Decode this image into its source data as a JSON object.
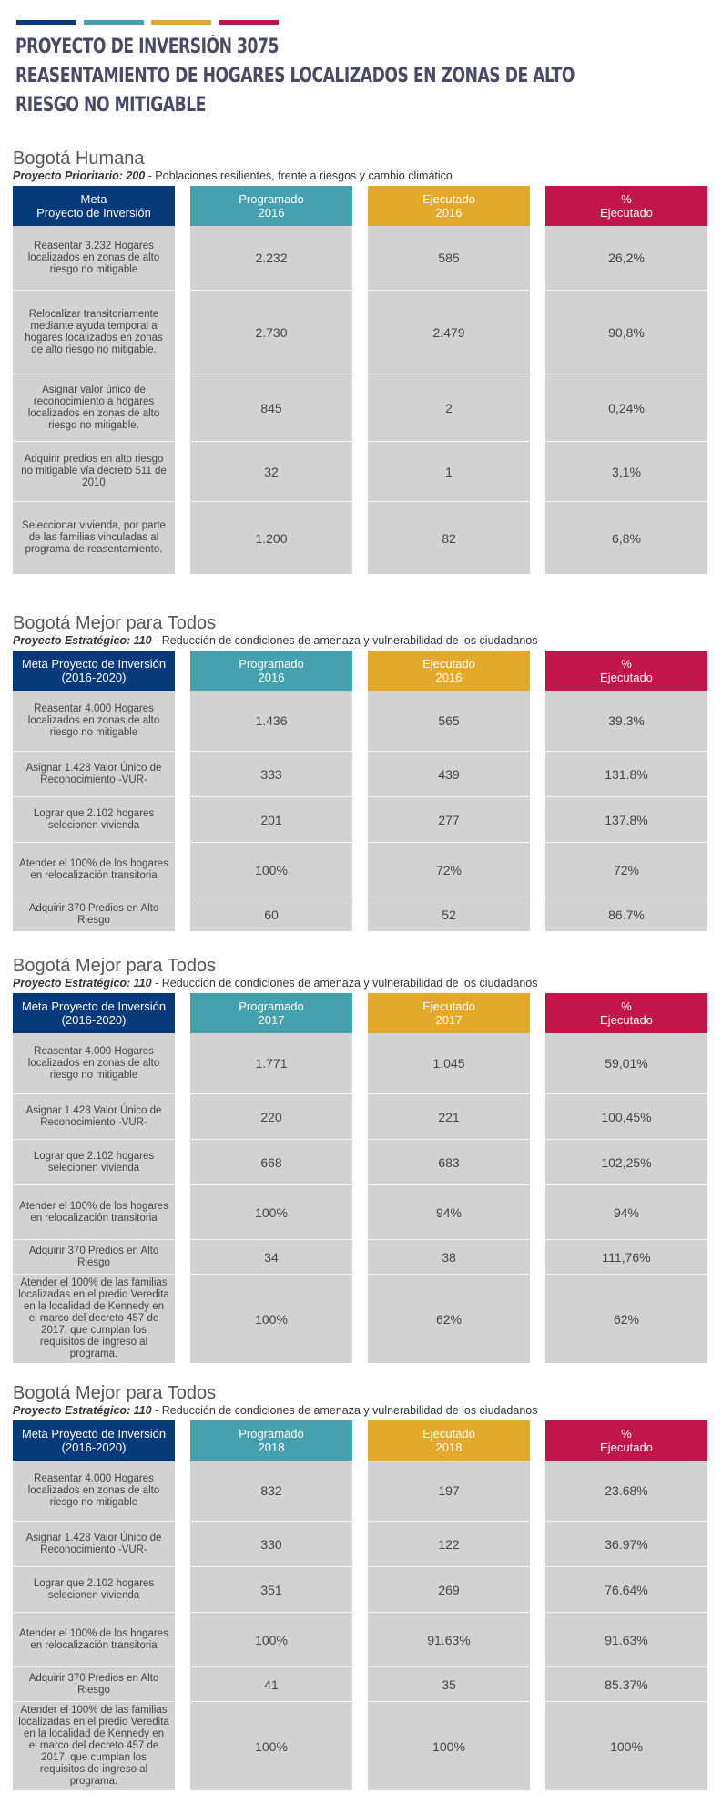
{
  "colors": {
    "navy": "#073a7a",
    "teal": "#45a1ae",
    "gold": "#e3a92b",
    "crimson": "#c1154b",
    "cell": "#d2d2d2"
  },
  "header": {
    "title_lines": [
      "PROYECTO DE INVERSIÓN 3075",
      "REASENTAMIENTO DE HOGARES LOCALIZADOS EN ZONAS DE ALTO",
      "RIESGO NO MITIGABLE"
    ]
  },
  "sections": [
    {
      "title": "Bogotá Humana",
      "sub_bold": "Proyecto Prioritario: 200",
      "sub_text": " - Poblaciones resilientes, frente a riesgos y cambio climático",
      "headers": [
        "Meta\nProyecto de Inversión",
        "Programado\n2016",
        "Ejecutado\n2016",
        "%\nEjecutado"
      ],
      "rows": [
        {
          "meta": "Reasentar 3.232 Hogares localizados en zonas de alto riesgo no mitigable",
          "programado": "2.232",
          "ejecutado": "585",
          "pct": "26,2%"
        },
        {
          "meta": "Relocalizar transitoriamente mediante ayuda temporal a hogares localizados en zonas de alto riesgo no mitigable.",
          "programado": "2.730",
          "ejecutado": "2.479",
          "pct": "90,8%"
        },
        {
          "meta": "Asignar valor único de reconocimiento a hogares localizados en zonas de alto riesgo no mitigable.",
          "programado": "845",
          "ejecutado": "2",
          "pct": "0,24%"
        },
        {
          "meta": "Adquirir predios en alto riesgo no mitigable vía decreto 511 de 2010",
          "programado": "32",
          "ejecutado": "1",
          "pct": "3,1%"
        },
        {
          "meta": "Seleccionar vivienda, por parte de las familias vinculadas al programa de reasentamiento.",
          "programado": "1.200",
          "ejecutado": "82",
          "pct": "6,8%"
        }
      ]
    },
    {
      "title": "Bogotá Mejor para Todos",
      "sub_bold": "Proyecto Estratégico: 110",
      "sub_text": " - Reducción de condiciones de amenaza y vulnerabilidad de los ciudadanos",
      "headers": [
        "Meta Proyecto de Inversión\n(2016-2020)",
        "Programado\n2016",
        "Ejecutado\n2016",
        "%\nEjecutado"
      ],
      "rows": [
        {
          "meta": "Reasentar 4.000 Hogares localizados en zonas de alto riesgo no mitigable",
          "programado": "1.436",
          "ejecutado": "565",
          "pct": "39.3%"
        },
        {
          "meta": "Asignar 1.428 Valor Único de Reconocimiento -VUR-",
          "programado": "333",
          "ejecutado": "439",
          "pct": "131.8%"
        },
        {
          "meta": "Lograr que 2.102 hogares selecionen vivienda",
          "programado": "201",
          "ejecutado": "277",
          "pct": "137.8%"
        },
        {
          "meta": "Atender el 100% de los hogares en relocalización transitoria",
          "programado": "100%",
          "ejecutado": "72%",
          "pct": "72%"
        },
        {
          "meta": "Adquirir 370 Predios en Alto Riesgo",
          "programado": "60",
          "ejecutado": "52",
          "pct": "86.7%"
        }
      ]
    },
    {
      "title": "Bogotá Mejor para Todos",
      "sub_bold": "Proyecto Estratégico: 110",
      "sub_text": " - Reducción de condiciones de amenaza y vulnerabilidad de los ciudadanos",
      "headers": [
        "Meta Proyecto de Inversión\n(2016-2020)",
        "Programado\n2017",
        "Ejecutado\n2017",
        "%\nEjecutado"
      ],
      "rows": [
        {
          "meta": "Reasentar 4.000 Hogares localizados en zonas de alto riesgo no mitigable",
          "programado": "1.771",
          "ejecutado": "1.045",
          "pct": "59,01%"
        },
        {
          "meta": "Asignar 1.428 Valor Único de Reconocimiento -VUR-",
          "programado": "220",
          "ejecutado": "221",
          "pct": "100,45%"
        },
        {
          "meta": "Lograr que 2.102 hogares selecionen vivienda",
          "programado": "668",
          "ejecutado": "683",
          "pct": "102,25%"
        },
        {
          "meta": "Atender el 100% de los hogares en relocalización transitoria",
          "programado": "100%",
          "ejecutado": "94%",
          "pct": "94%"
        },
        {
          "meta": "Adquirir 370 Predios en Alto Riesgo",
          "programado": "34",
          "ejecutado": "38",
          "pct": "111,76%"
        },
        {
          "meta": "Atender el 100% de las familias localizadas en el predio Veredita en la localidad de Kennedy en el marco del decreto 457 de 2017, que cumplan los requisitos de ingreso al programa.",
          "programado": "100%",
          "ejecutado": "62%",
          "pct": "62%"
        }
      ]
    },
    {
      "title": "Bogotá Mejor para Todos",
      "sub_bold": "Proyecto Estratégico: 110",
      "sub_text": " - Reducción de condiciones de amenaza y vulnerabilidad de los ciudadanos",
      "headers": [
        "Meta Proyecto de Inversión\n(2016-2020)",
        "Programado\n2018",
        "Ejecutado\n2018",
        "%\nEjecutado"
      ],
      "rows": [
        {
          "meta": "Reasentar 4.000 Hogares localizados en zonas de alto riesgo no mitigable",
          "programado": "832",
          "ejecutado": "197",
          "pct": "23.68%"
        },
        {
          "meta": "Asignar 1.428 Valor Único de Reconocimiento -VUR-",
          "programado": "330",
          "ejecutado": "122",
          "pct": "36.97%"
        },
        {
          "meta": "Lograr que 2.102 hogares selecionen vivienda",
          "programado": "351",
          "ejecutado": "269",
          "pct": "76.64%"
        },
        {
          "meta": "Atender el 100% de los hogares en relocalización transitoria",
          "programado": "100%",
          "ejecutado": "91.63%",
          "pct": "91.63%"
        },
        {
          "meta": "Adquirir 370 Predios en Alto Riesgo",
          "programado": "41",
          "ejecutado": "35",
          "pct": "85.37%"
        },
        {
          "meta": "Atender el 100% de las familias localizadas en el predio Veredita en la localidad de Kennedy en el marco del decreto 457 de 2017, que cumplan los requisitos de ingreso al programa.",
          "programado": "100%",
          "ejecutado": "100%",
          "pct": "100%"
        }
      ]
    }
  ]
}
